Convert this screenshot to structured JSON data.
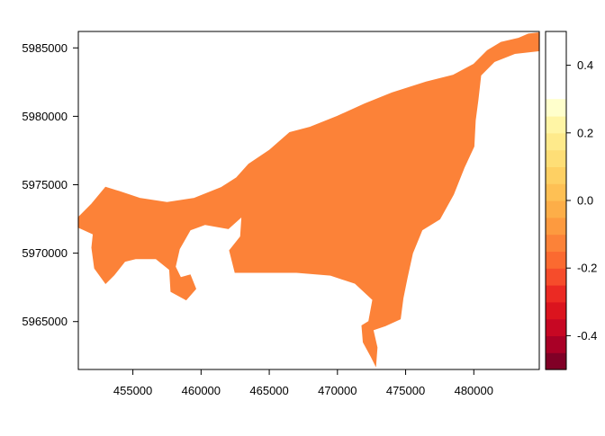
{
  "chart_data": {
    "type": "heatmap",
    "title": "",
    "xlabel": "",
    "ylabel": "",
    "xlim": [
      451000,
      484800
    ],
    "ylim": [
      5961500,
      5986200
    ],
    "x_ticks": [
      455000,
      460000,
      465000,
      470000,
      475000,
      480000
    ],
    "y_ticks": [
      5965000,
      5970000,
      5975000,
      5980000,
      5985000
    ],
    "raster_value": 0.0,
    "raster_fill": "#FC8238",
    "land_outline": [
      [
        451000,
        5972600
      ],
      [
        452000,
        5973600
      ],
      [
        453000,
        5974800
      ],
      [
        454000,
        5974500
      ],
      [
        455500,
        5974000
      ],
      [
        457500,
        5973700
      ],
      [
        459500,
        5974000
      ],
      [
        461500,
        5974800
      ],
      [
        462600,
        5975500
      ],
      [
        463500,
        5976500
      ],
      [
        465000,
        5977500
      ],
      [
        466500,
        5978800
      ],
      [
        468000,
        5979200
      ],
      [
        470000,
        5980000
      ],
      [
        472000,
        5980900
      ],
      [
        474000,
        5981700
      ],
      [
        476500,
        5982500
      ],
      [
        478500,
        5983000
      ],
      [
        480000,
        5983800
      ],
      [
        481000,
        5984800
      ],
      [
        482000,
        5985400
      ],
      [
        483300,
        5985700
      ],
      [
        484000,
        5986000
      ],
      [
        484800,
        5986100
      ],
      [
        484800,
        5984800
      ],
      [
        483000,
        5984600
      ],
      [
        481500,
        5984000
      ],
      [
        480500,
        5983000
      ],
      [
        480300,
        5981200
      ],
      [
        480100,
        5979700
      ],
      [
        480000,
        5977800
      ],
      [
        479300,
        5976300
      ],
      [
        478500,
        5974300
      ],
      [
        477500,
        5972500
      ],
      [
        476200,
        5971700
      ],
      [
        475500,
        5970000
      ],
      [
        475100,
        5968200
      ],
      [
        474800,
        5966700
      ],
      [
        474600,
        5965200
      ],
      [
        473500,
        5964700
      ],
      [
        472600,
        5964400
      ],
      [
        472900,
        5963100
      ],
      [
        472800,
        5961800
      ],
      [
        472500,
        5962400
      ],
      [
        471900,
        5963500
      ],
      [
        471800,
        5964700
      ],
      [
        472300,
        5965000
      ],
      [
        472600,
        5966600
      ],
      [
        471300,
        5967800
      ],
      [
        469500,
        5968400
      ],
      [
        467000,
        5968600
      ],
      [
        464500,
        5968600
      ],
      [
        462500,
        5968600
      ],
      [
        462100,
        5970200
      ],
      [
        462900,
        5971200
      ],
      [
        463000,
        5972700
      ],
      [
        462000,
        5971800
      ],
      [
        460300,
        5972100
      ],
      [
        459200,
        5971700
      ],
      [
        458400,
        5970300
      ],
      [
        458100,
        5969000
      ],
      [
        458500,
        5968200
      ],
      [
        459200,
        5968400
      ],
      [
        459600,
        5967400
      ],
      [
        458900,
        5966600
      ],
      [
        457800,
        5967200
      ],
      [
        457700,
        5968800
      ],
      [
        456700,
        5969600
      ],
      [
        455200,
        5969600
      ],
      [
        454400,
        5969400
      ],
      [
        453600,
        5968400
      ],
      [
        453000,
        5967800
      ],
      [
        452200,
        5968900
      ],
      [
        452000,
        5970400
      ],
      [
        452100,
        5971400
      ],
      [
        451000,
        5971900
      ]
    ],
    "colorbar": {
      "range": [
        -0.5,
        0.5
      ],
      "levels": [
        -0.5,
        -0.45,
        -0.4,
        -0.35,
        -0.3,
        -0.25,
        -0.2,
        -0.15,
        -0.1,
        -0.05,
        0.0,
        0.05,
        0.1,
        0.15,
        0.2,
        0.25,
        0.3,
        0.35,
        0.4,
        0.45,
        0.5
      ],
      "colors": [
        "#800026",
        "#A90026",
        "#C70723",
        "#DB141E",
        "#EB2A23",
        "#F64C2B",
        "#FB6A30",
        "#FC8238",
        "#FD9A3F",
        "#FDAE48",
        "#FEC054",
        "#FED063",
        "#FEDE76",
        "#FEEA8B",
        "#FFF5A5",
        "#FFFFCC"
      ],
      "ticks": [
        -0.4,
        -0.2,
        0.0,
        0.2,
        0.4
      ],
      "tick_labels": [
        "-0.4",
        "-0.2",
        "0.0",
        "0.2",
        "0.4"
      ]
    }
  }
}
